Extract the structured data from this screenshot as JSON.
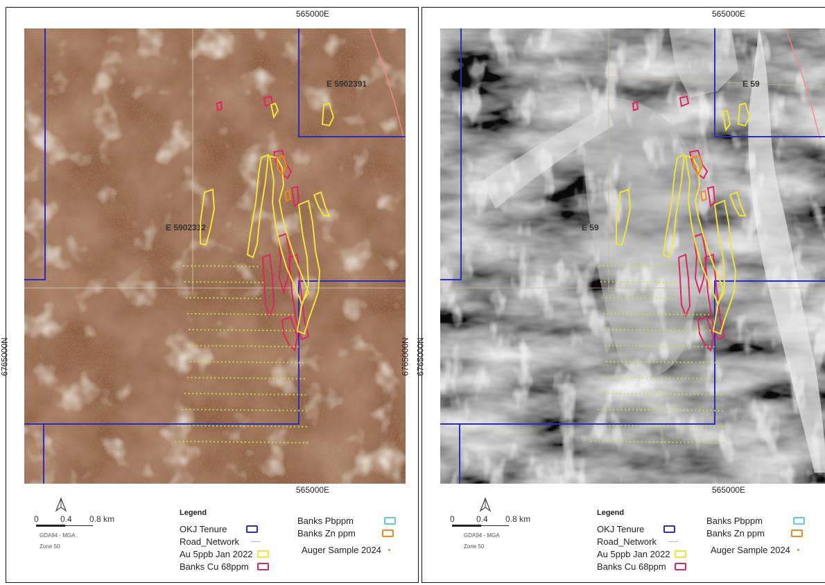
{
  "left": {
    "coord_top": "565000E",
    "coord_bottom": "565000E",
    "coord_vertical": "6765000N",
    "tenement_labels": [
      "E 5902391",
      "E 5902312"
    ]
  },
  "right": {
    "coord_top": "565000E",
    "coord_bottom": "565000E",
    "coord_vertical": "6765000N",
    "tenement_labels": [
      "E 59",
      "E 59"
    ]
  },
  "scale": {
    "ticks": [
      "0",
      "0.4",
      "0.8 km"
    ],
    "datum": "GDA94 - MGA",
    "zone": "Zone 50"
  },
  "legend": {
    "title": "Legend",
    "items": [
      {
        "label": "OKJ Tenure",
        "color": "#2b2bbf",
        "type": "box"
      },
      {
        "label": "Road_Network",
        "color": "#f0a0a0",
        "type": "line"
      },
      {
        "label": "Au 5ppb Jan 2022",
        "color": "#f2e635",
        "type": "box"
      },
      {
        "label": "Banks Cu 68ppm",
        "color": "#e0245e",
        "type": "box"
      },
      {
        "label": "Banks Pbppm",
        "color": "#5fc8e8",
        "type": "box"
      },
      {
        "label": "Banks Zn ppm",
        "color": "#f08a1c",
        "type": "box"
      },
      {
        "label": "Auger Sample 2024",
        "color": "#a8a030",
        "type": "dot"
      }
    ]
  }
}
